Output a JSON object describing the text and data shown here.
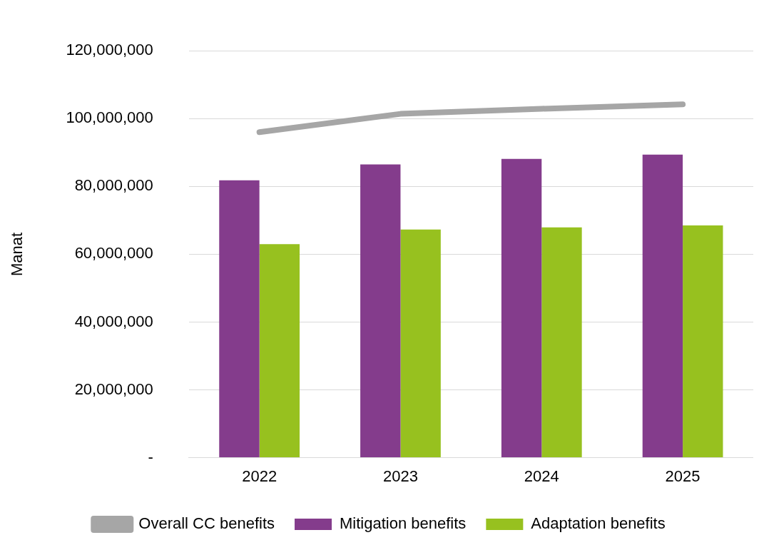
{
  "chart_data": {
    "type": "bar",
    "ylabel": "Manat",
    "categories": [
      "2022",
      "2023",
      "2024",
      "2025"
    ],
    "series": [
      {
        "name": "Mitigation benefits",
        "color": "#843c8c",
        "values": [
          81800000,
          86500000,
          88100000,
          89400000
        ]
      },
      {
        "name": "Adaptation benefits",
        "color": "#97c11f",
        "values": [
          63000000,
          67300000,
          67900000,
          68500000
        ]
      },
      {
        "name": "Overall CC benefits",
        "type": "line",
        "color": "#a6a6a6",
        "values": [
          96000000,
          101400000,
          102900000,
          104200000
        ],
        "marker": "none"
      }
    ],
    "ylim": [
      0,
      120000000
    ],
    "yticks": [
      {
        "value": 0,
        "label": "-"
      },
      {
        "value": 20000000,
        "label": "20,000,000"
      },
      {
        "value": 40000000,
        "label": "40,000,000"
      },
      {
        "value": 60000000,
        "label": "60,000,000"
      },
      {
        "value": 80000000,
        "label": "80,000,000"
      },
      {
        "value": 100000000,
        "label": "100,000,000"
      },
      {
        "value": 120000000,
        "label": "120,000,000"
      }
    ],
    "grid": "y",
    "legend": "bottom"
  }
}
